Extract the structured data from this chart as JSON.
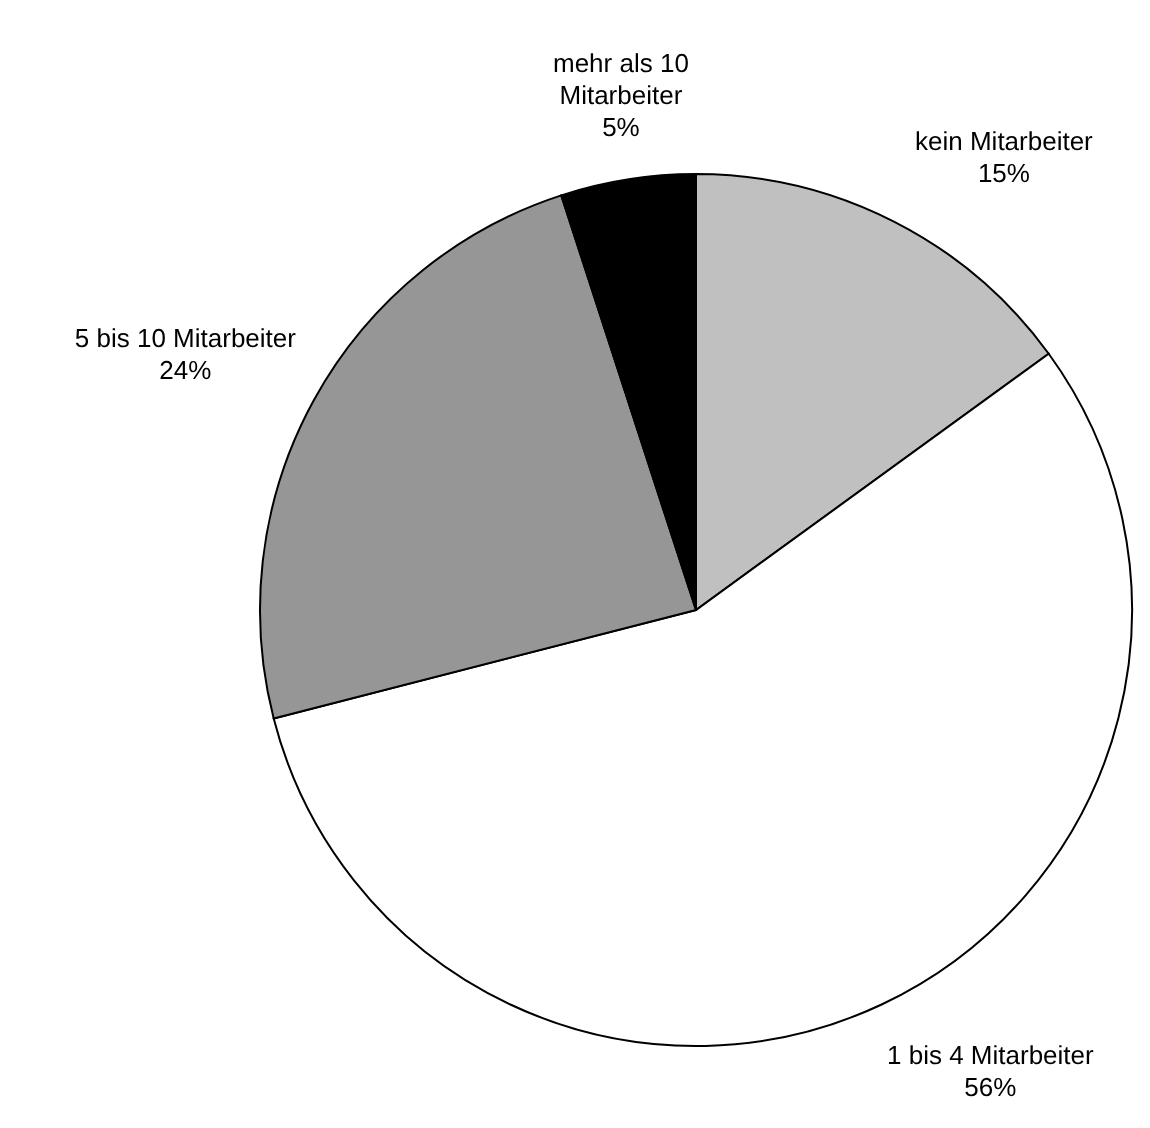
{
  "chart_data": {
    "type": "pie",
    "categories": [
      "kein Mitarbeiter",
      "1 bis 4 Mitarbeiter",
      "5 bis 10 Mitarbeiter",
      "mehr als 10 Mitarbeiter"
    ],
    "values": [
      15,
      56,
      24,
      5
    ],
    "colors": [
      "#c0c0c0",
      "#ffffff",
      "#969696",
      "#000000"
    ],
    "value_labels": [
      "15%",
      "56%",
      "24%",
      "5%"
    ]
  }
}
